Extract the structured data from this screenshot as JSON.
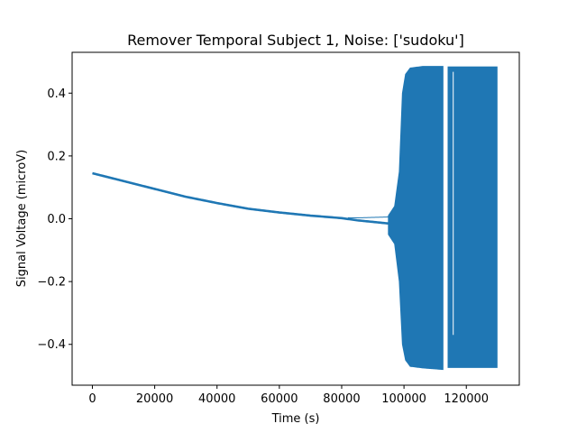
{
  "chart_data": {
    "type": "line",
    "title": "Remover Temporal Subject 1, Noise: ['sudoku']",
    "xlabel": "Time (s)",
    "ylabel": "Signal Voltage (microV)",
    "xlim": [
      -6500,
      137000
    ],
    "ylim": [
      -0.53,
      0.53
    ],
    "xticks": [
      0,
      20000,
      40000,
      60000,
      80000,
      100000,
      120000
    ],
    "xtick_labels": [
      "0",
      "20000",
      "40000",
      "60000",
      "80000",
      "100000",
      "120000"
    ],
    "yticks": [
      -0.4,
      -0.2,
      0.0,
      0.2,
      0.4
    ],
    "ytick_labels": [
      "−0.4",
      "−0.2",
      "0.0",
      "0.2",
      "0.4"
    ],
    "grid": false,
    "series": [
      {
        "color": "#1f77b4",
        "trend": {
          "x": [
            0,
            10000,
            20000,
            30000,
            40000,
            50000,
            60000,
            70000,
            80000,
            85000,
            90000,
            95000
          ],
          "y": [
            0.145,
            0.12,
            0.095,
            0.07,
            0.05,
            0.032,
            0.02,
            0.01,
            0.002,
            -0.005,
            -0.01,
            -0.015
          ]
        },
        "oscillation_envelope": {
          "x": [
            95000,
            97000,
            98500,
            99500,
            100500,
            102000,
            106000,
            112500
          ],
          "upper": [
            0.01,
            0.04,
            0.15,
            0.4,
            0.46,
            0.48,
            0.485,
            0.485
          ],
          "lower": [
            -0.05,
            -0.08,
            -0.2,
            -0.4,
            -0.45,
            -0.47,
            -0.475,
            -0.48
          ]
        },
        "gap": [
          112500,
          114000
        ],
        "post_gap_segment": {
          "x": [
            114000,
            130000
          ],
          "upper": 0.485,
          "lower": -0.475
        },
        "dropout_at": 115800
      }
    ]
  }
}
